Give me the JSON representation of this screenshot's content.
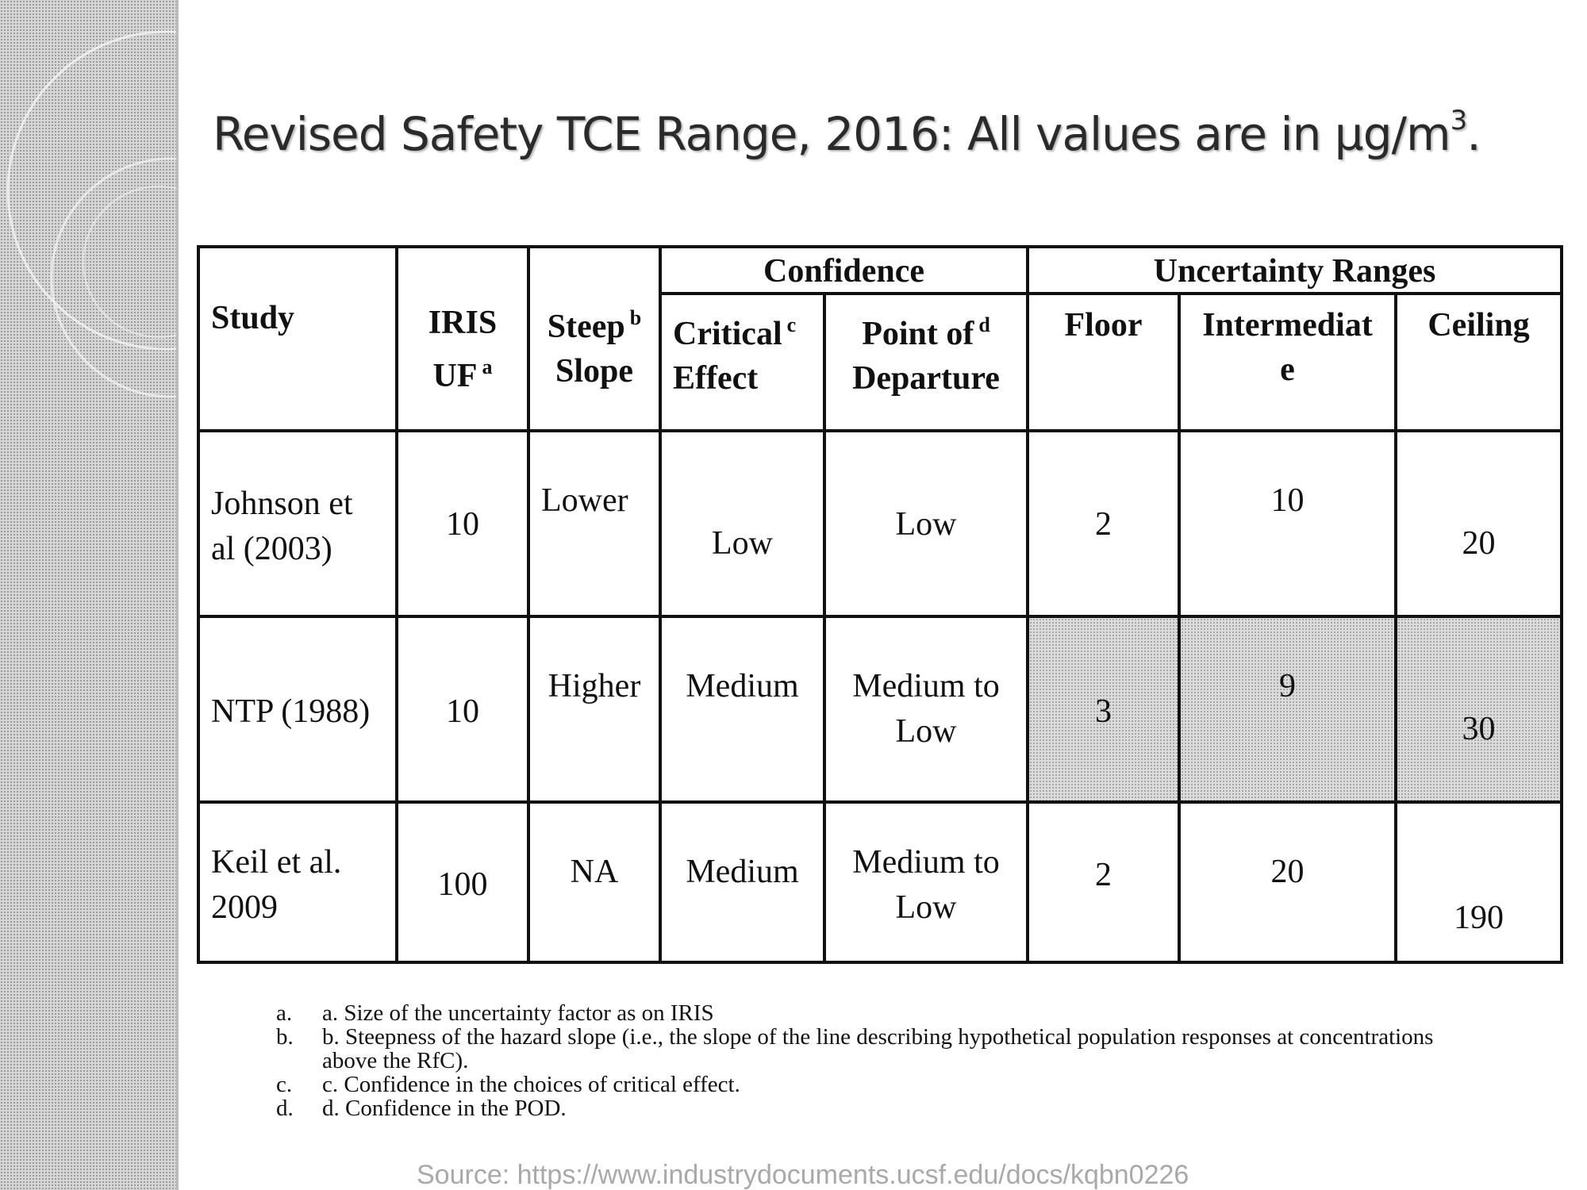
{
  "title": {
    "main": "Revised Safety TCE Range, 2016: All values are in µg/m",
    "superscript": "3",
    "end": "."
  },
  "table": {
    "group_headers": {
      "confidence": "Confidence",
      "uncertainty": "Uncertainty Ranges"
    },
    "headers": {
      "study": "Study",
      "iris_line1": "IRIS",
      "iris_line2": "UF",
      "iris_fn": "a",
      "steep_line1": "Steep",
      "steep_fn": "b",
      "steep_line2": "Slope",
      "critical_line1": "Critical",
      "critical_fn": "c",
      "critical_line2": "Effect",
      "pod_line1": "Point of",
      "pod_fn": "d",
      "pod_line2": "Departure",
      "floor": "Floor",
      "intermediate_line1": "Intermediat",
      "intermediate_line2": "e",
      "ceiling": "Ceiling"
    },
    "rows": [
      {
        "study_line1": "Johnson et",
        "study_line2": "al (2003)",
        "iris_uf": "10",
        "steep_slope": "Lower",
        "critical_effect": "Low",
        "pod_line1": "Low",
        "pod_line2": "",
        "floor": "2",
        "intermediate": "10",
        "ceiling": "20"
      },
      {
        "study_line1": "NTP (1988)",
        "study_line2": "",
        "iris_uf": "10",
        "steep_slope": "Higher",
        "critical_effect": "Medium",
        "pod_line1": "Medium to",
        "pod_line2": "Low",
        "floor": "3",
        "intermediate": "9",
        "ceiling": "30"
      },
      {
        "study_line1": "Keil et al.",
        "study_line2": "2009",
        "iris_uf": "100",
        "steep_slope": "NA",
        "critical_effect": "Medium",
        "pod_line1": "Medium to",
        "pod_line2": "Low",
        "floor": "2",
        "intermediate": "20",
        "ceiling": "190"
      }
    ]
  },
  "footnotes": [
    {
      "marker": "a.",
      "text": "a. Size of the uncertainty factor as on IRIS"
    },
    {
      "marker": "b.",
      "text": "b. Steepness of the hazard slope (i.e., the slope of the line describing hypothetical population responses at concentrations above the RfC)."
    },
    {
      "marker": "c.",
      "text": "c. Confidence in the choices of critical effect."
    },
    {
      "marker": "d.",
      "text": "d. Confidence in the POD."
    }
  ],
  "source": "Source: https://www.industrydocuments.ucsf.edu/docs/kqbn0226"
}
